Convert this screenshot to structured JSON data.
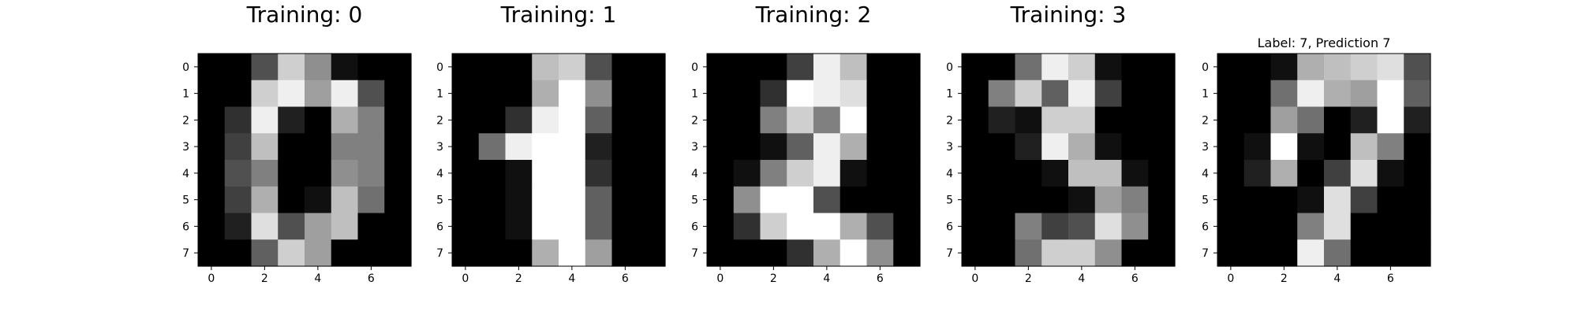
{
  "figure": {
    "background": "#ffffff",
    "colormap": "gray_r"
  },
  "chart_data": [
    {
      "type": "heatmap",
      "title": "Training: 0",
      "title_size": "large",
      "xticks": [
        0,
        2,
        4,
        6
      ],
      "yticks": [
        0,
        1,
        2,
        3,
        4,
        5,
        6,
        7
      ],
      "xlim": [
        -0.5,
        7.5
      ],
      "ylim": [
        7.5,
        -0.5
      ],
      "value_range": [
        0,
        16
      ],
      "grid": false,
      "values": [
        [
          0,
          0,
          5,
          13,
          9,
          1,
          0,
          0
        ],
        [
          0,
          0,
          13,
          15,
          10,
          15,
          5,
          0
        ],
        [
          0,
          3,
          15,
          2,
          0,
          11,
          8,
          0
        ],
        [
          0,
          4,
          12,
          0,
          0,
          8,
          8,
          0
        ],
        [
          0,
          5,
          8,
          0,
          0,
          9,
          8,
          0
        ],
        [
          0,
          4,
          11,
          0,
          1,
          12,
          7,
          0
        ],
        [
          0,
          2,
          14,
          5,
          10,
          12,
          0,
          0
        ],
        [
          0,
          0,
          6,
          13,
          10,
          0,
          0,
          0
        ]
      ]
    },
    {
      "type": "heatmap",
      "title": "Training: 1",
      "title_size": "large",
      "xticks": [
        0,
        2,
        4,
        6
      ],
      "yticks": [
        0,
        1,
        2,
        3,
        4,
        5,
        6,
        7
      ],
      "xlim": [
        -0.5,
        7.5
      ],
      "ylim": [
        7.5,
        -0.5
      ],
      "value_range": [
        0,
        16
      ],
      "grid": false,
      "values": [
        [
          0,
          0,
          0,
          12,
          13,
          5,
          0,
          0
        ],
        [
          0,
          0,
          0,
          11,
          16,
          9,
          0,
          0
        ],
        [
          0,
          0,
          3,
          15,
          16,
          6,
          0,
          0
        ],
        [
          0,
          7,
          15,
          16,
          16,
          2,
          0,
          0
        ],
        [
          0,
          0,
          1,
          16,
          16,
          3,
          0,
          0
        ],
        [
          0,
          0,
          1,
          16,
          16,
          6,
          0,
          0
        ],
        [
          0,
          0,
          1,
          16,
          16,
          6,
          0,
          0
        ],
        [
          0,
          0,
          0,
          11,
          16,
          10,
          0,
          0
        ]
      ]
    },
    {
      "type": "heatmap",
      "title": "Training: 2",
      "title_size": "large",
      "xticks": [
        0,
        2,
        4,
        6
      ],
      "yticks": [
        0,
        1,
        2,
        3,
        4,
        5,
        6,
        7
      ],
      "xlim": [
        -0.5,
        7.5
      ],
      "ylim": [
        7.5,
        -0.5
      ],
      "value_range": [
        0,
        16
      ],
      "grid": false,
      "values": [
        [
          0,
          0,
          0,
          4,
          15,
          12,
          0,
          0
        ],
        [
          0,
          0,
          3,
          16,
          15,
          14,
          0,
          0
        ],
        [
          0,
          0,
          8,
          13,
          8,
          16,
          0,
          0
        ],
        [
          0,
          0,
          1,
          6,
          15,
          11,
          0,
          0
        ],
        [
          0,
          1,
          8,
          13,
          15,
          1,
          0,
          0
        ],
        [
          0,
          9,
          16,
          16,
          5,
          0,
          0,
          0
        ],
        [
          0,
          3,
          13,
          16,
          16,
          11,
          5,
          0
        ],
        [
          0,
          0,
          0,
          3,
          11,
          16,
          9,
          0
        ]
      ]
    },
    {
      "type": "heatmap",
      "title": "Training: 3",
      "title_size": "large",
      "xticks": [
        0,
        2,
        4,
        6
      ],
      "yticks": [
        0,
        1,
        2,
        3,
        4,
        5,
        6,
        7
      ],
      "xlim": [
        -0.5,
        7.5
      ],
      "ylim": [
        7.5,
        -0.5
      ],
      "value_range": [
        0,
        16
      ],
      "grid": false,
      "values": [
        [
          0,
          0,
          7,
          15,
          13,
          1,
          0,
          0
        ],
        [
          0,
          8,
          13,
          6,
          15,
          4,
          0,
          0
        ],
        [
          0,
          2,
          1,
          13,
          13,
          0,
          0,
          0
        ],
        [
          0,
          0,
          2,
          15,
          11,
          1,
          0,
          0
        ],
        [
          0,
          0,
          0,
          1,
          12,
          12,
          1,
          0
        ],
        [
          0,
          0,
          0,
          0,
          1,
          10,
          8,
          0
        ],
        [
          0,
          0,
          8,
          4,
          5,
          14,
          9,
          0
        ],
        [
          0,
          0,
          7,
          13,
          13,
          9,
          0,
          0
        ]
      ]
    },
    {
      "type": "heatmap",
      "title": "Label: 7, Prediction 7",
      "title_size": "small",
      "xticks": [
        0,
        2,
        4,
        6
      ],
      "yticks": [
        0,
        1,
        2,
        3,
        4,
        5,
        6,
        7
      ],
      "xlim": [
        -0.5,
        7.5
      ],
      "ylim": [
        7.5,
        -0.5
      ],
      "value_range": [
        0,
        16
      ],
      "grid": false,
      "values": [
        [
          0,
          0,
          1,
          11,
          12,
          13,
          14,
          5
        ],
        [
          0,
          0,
          7,
          15,
          11,
          10,
          16,
          6
        ],
        [
          0,
          0,
          10,
          7,
          0,
          2,
          16,
          2
        ],
        [
          0,
          1,
          16,
          1,
          0,
          12,
          8,
          0
        ],
        [
          0,
          2,
          11,
          0,
          4,
          14,
          1,
          0
        ],
        [
          0,
          0,
          0,
          1,
          14,
          4,
          0,
          0
        ],
        [
          0,
          0,
          0,
          8,
          14,
          0,
          0,
          0
        ],
        [
          0,
          0,
          0,
          15,
          7,
          0,
          0,
          0
        ]
      ]
    }
  ]
}
